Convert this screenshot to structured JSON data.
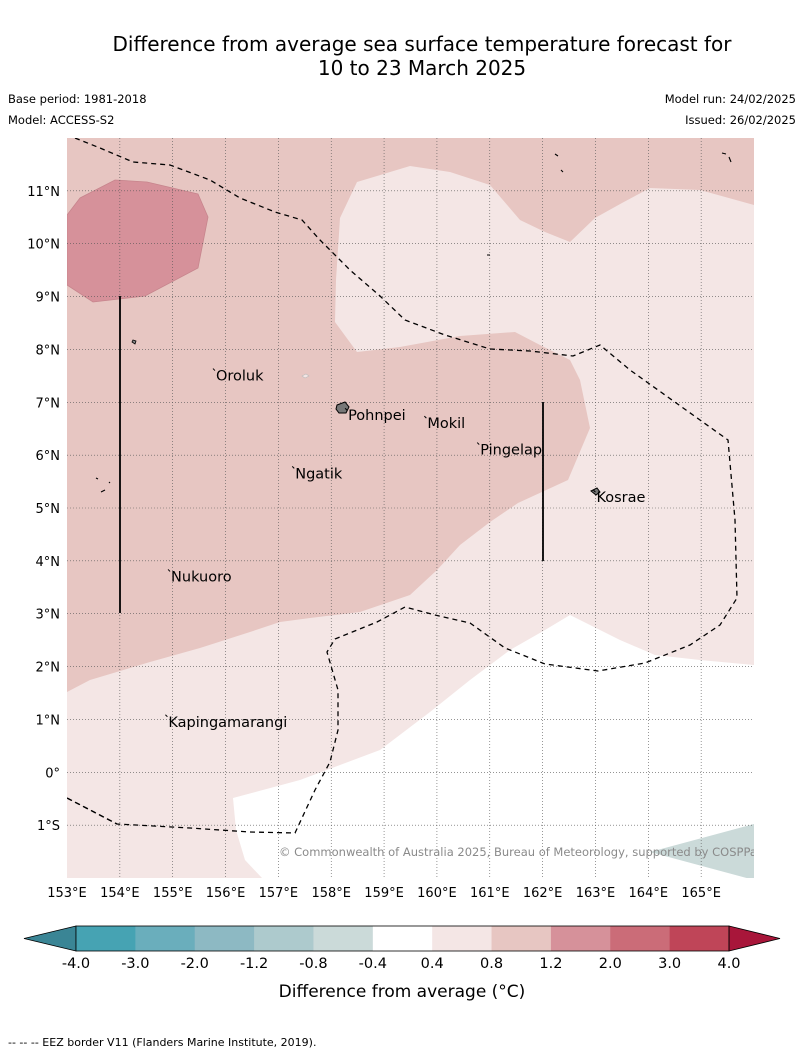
{
  "header": {
    "title_line1": "Difference from average sea surface temperature forecast for",
    "title_line2": "10 to 23 March 2025",
    "base_period": "Base period: 1981-2018",
    "model": "Model: ACCESS-S2",
    "model_run": "Model run: 24/02/2025",
    "issued": "Issued: 26/02/2025"
  },
  "map": {
    "lon_range": [
      153.0,
      166.0
    ],
    "lat_range": [
      -2.0,
      12.0
    ],
    "lon_labels": [
      "153°E",
      "154°E",
      "155°E",
      "156°E",
      "157°E",
      "158°E",
      "159°E",
      "160°E",
      "161°E",
      "162°E",
      "163°E",
      "164°E",
      "165°E"
    ],
    "lat_labels": [
      "1°S",
      "0°",
      "1°N",
      "2°N",
      "3°N",
      "4°N",
      "5°N",
      "6°N",
      "7°N",
      "8°N",
      "9°N",
      "10°N",
      "11°N"
    ],
    "gridlines": "dotted",
    "places": [
      {
        "name": "Oroluk",
        "lon": 155.8,
        "lat": 7.6
      },
      {
        "name": "Pohnpei",
        "lon": 158.3,
        "lat": 6.85
      },
      {
        "name": "Mokil",
        "lon": 159.8,
        "lat": 6.7
      },
      {
        "name": "Pingelap",
        "lon": 160.8,
        "lat": 6.2
      },
      {
        "name": "Ngatik",
        "lon": 157.3,
        "lat": 5.75
      },
      {
        "name": "Kosrae",
        "lon": 163.0,
        "lat": 5.3
      },
      {
        "name": "Nukuoro",
        "lon": 154.95,
        "lat": 3.8
      },
      {
        "name": "Kapingamarangi",
        "lon": 154.9,
        "lat": 1.05
      }
    ],
    "copyright": "© Commonwealth of Australia 2025, Bureau of Meteorology, supported by COSPPac"
  },
  "colorbar": {
    "ticks": [
      "-4.0",
      "-3.0",
      "-2.0",
      "-1.2",
      "-0.8",
      "-0.4",
      "0.4",
      "0.8",
      "1.2",
      "2.0",
      "3.0",
      "4.0"
    ],
    "colors": [
      "#46a3b3",
      "#6aaebc",
      "#8db9c3",
      "#adcacd",
      "#cbdad9",
      "#ffffff",
      "#f4e6e5",
      "#e7c6c2",
      "#d6919a",
      "#cb6c78",
      "#bf4558"
    ],
    "under_color": "#3a8595",
    "over_color": "#a8163a",
    "label": "Difference from average (°C)"
  },
  "footnote": "-- -- -- EEZ border V11 (Flanders Marine Institute, 2019)."
}
